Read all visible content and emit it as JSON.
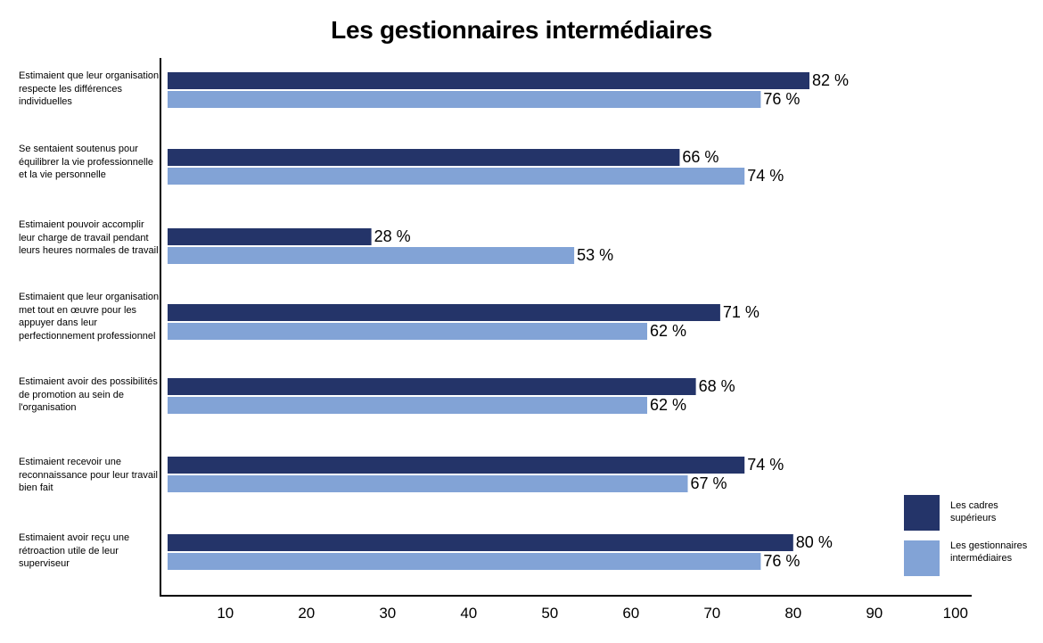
{
  "chart_data": {
    "type": "bar",
    "orientation": "horizontal",
    "title": "Les gestionnaires intermédiaires",
    "xlabel": "",
    "ylabel": "",
    "xlim": [
      2,
      102
    ],
    "ticks": [
      10,
      20,
      30,
      40,
      50,
      60,
      70,
      80,
      90,
      100
    ],
    "value_suffix": " %",
    "categories": [
      "Estimaient que leur organisation respecte les différences individuelles",
      "Se sentaient soutenus pour équilibrer la vie professionnelle et la vie personnelle",
      "Estimaient pouvoir accomplir leur charge de travail pendant leurs heures normales de travail",
      "Estimaient que leur organisation met tout en œuvre pour les appuyer dans leur perfectionnement professionnel",
      "Estimaient avoir des possibilités de promotion au sein de l'organisation",
      "Estimaient recevoir une reconnaissance pour leur travail bien fait",
      "Estimaient avoir reçu une rétroaction utile de leur superviseur"
    ],
    "series": [
      {
        "name": "Les cadres supérieurs",
        "color": "#243469",
        "values": [
          82,
          66,
          28,
          71,
          68,
          74,
          80
        ]
      },
      {
        "name": "Les gestionnaires intermédiaires",
        "color": "#82a3d6",
        "values": [
          76,
          74,
          53,
          62,
          62,
          67,
          76
        ]
      }
    ],
    "legend_position": "bottom-right",
    "grid": false
  }
}
